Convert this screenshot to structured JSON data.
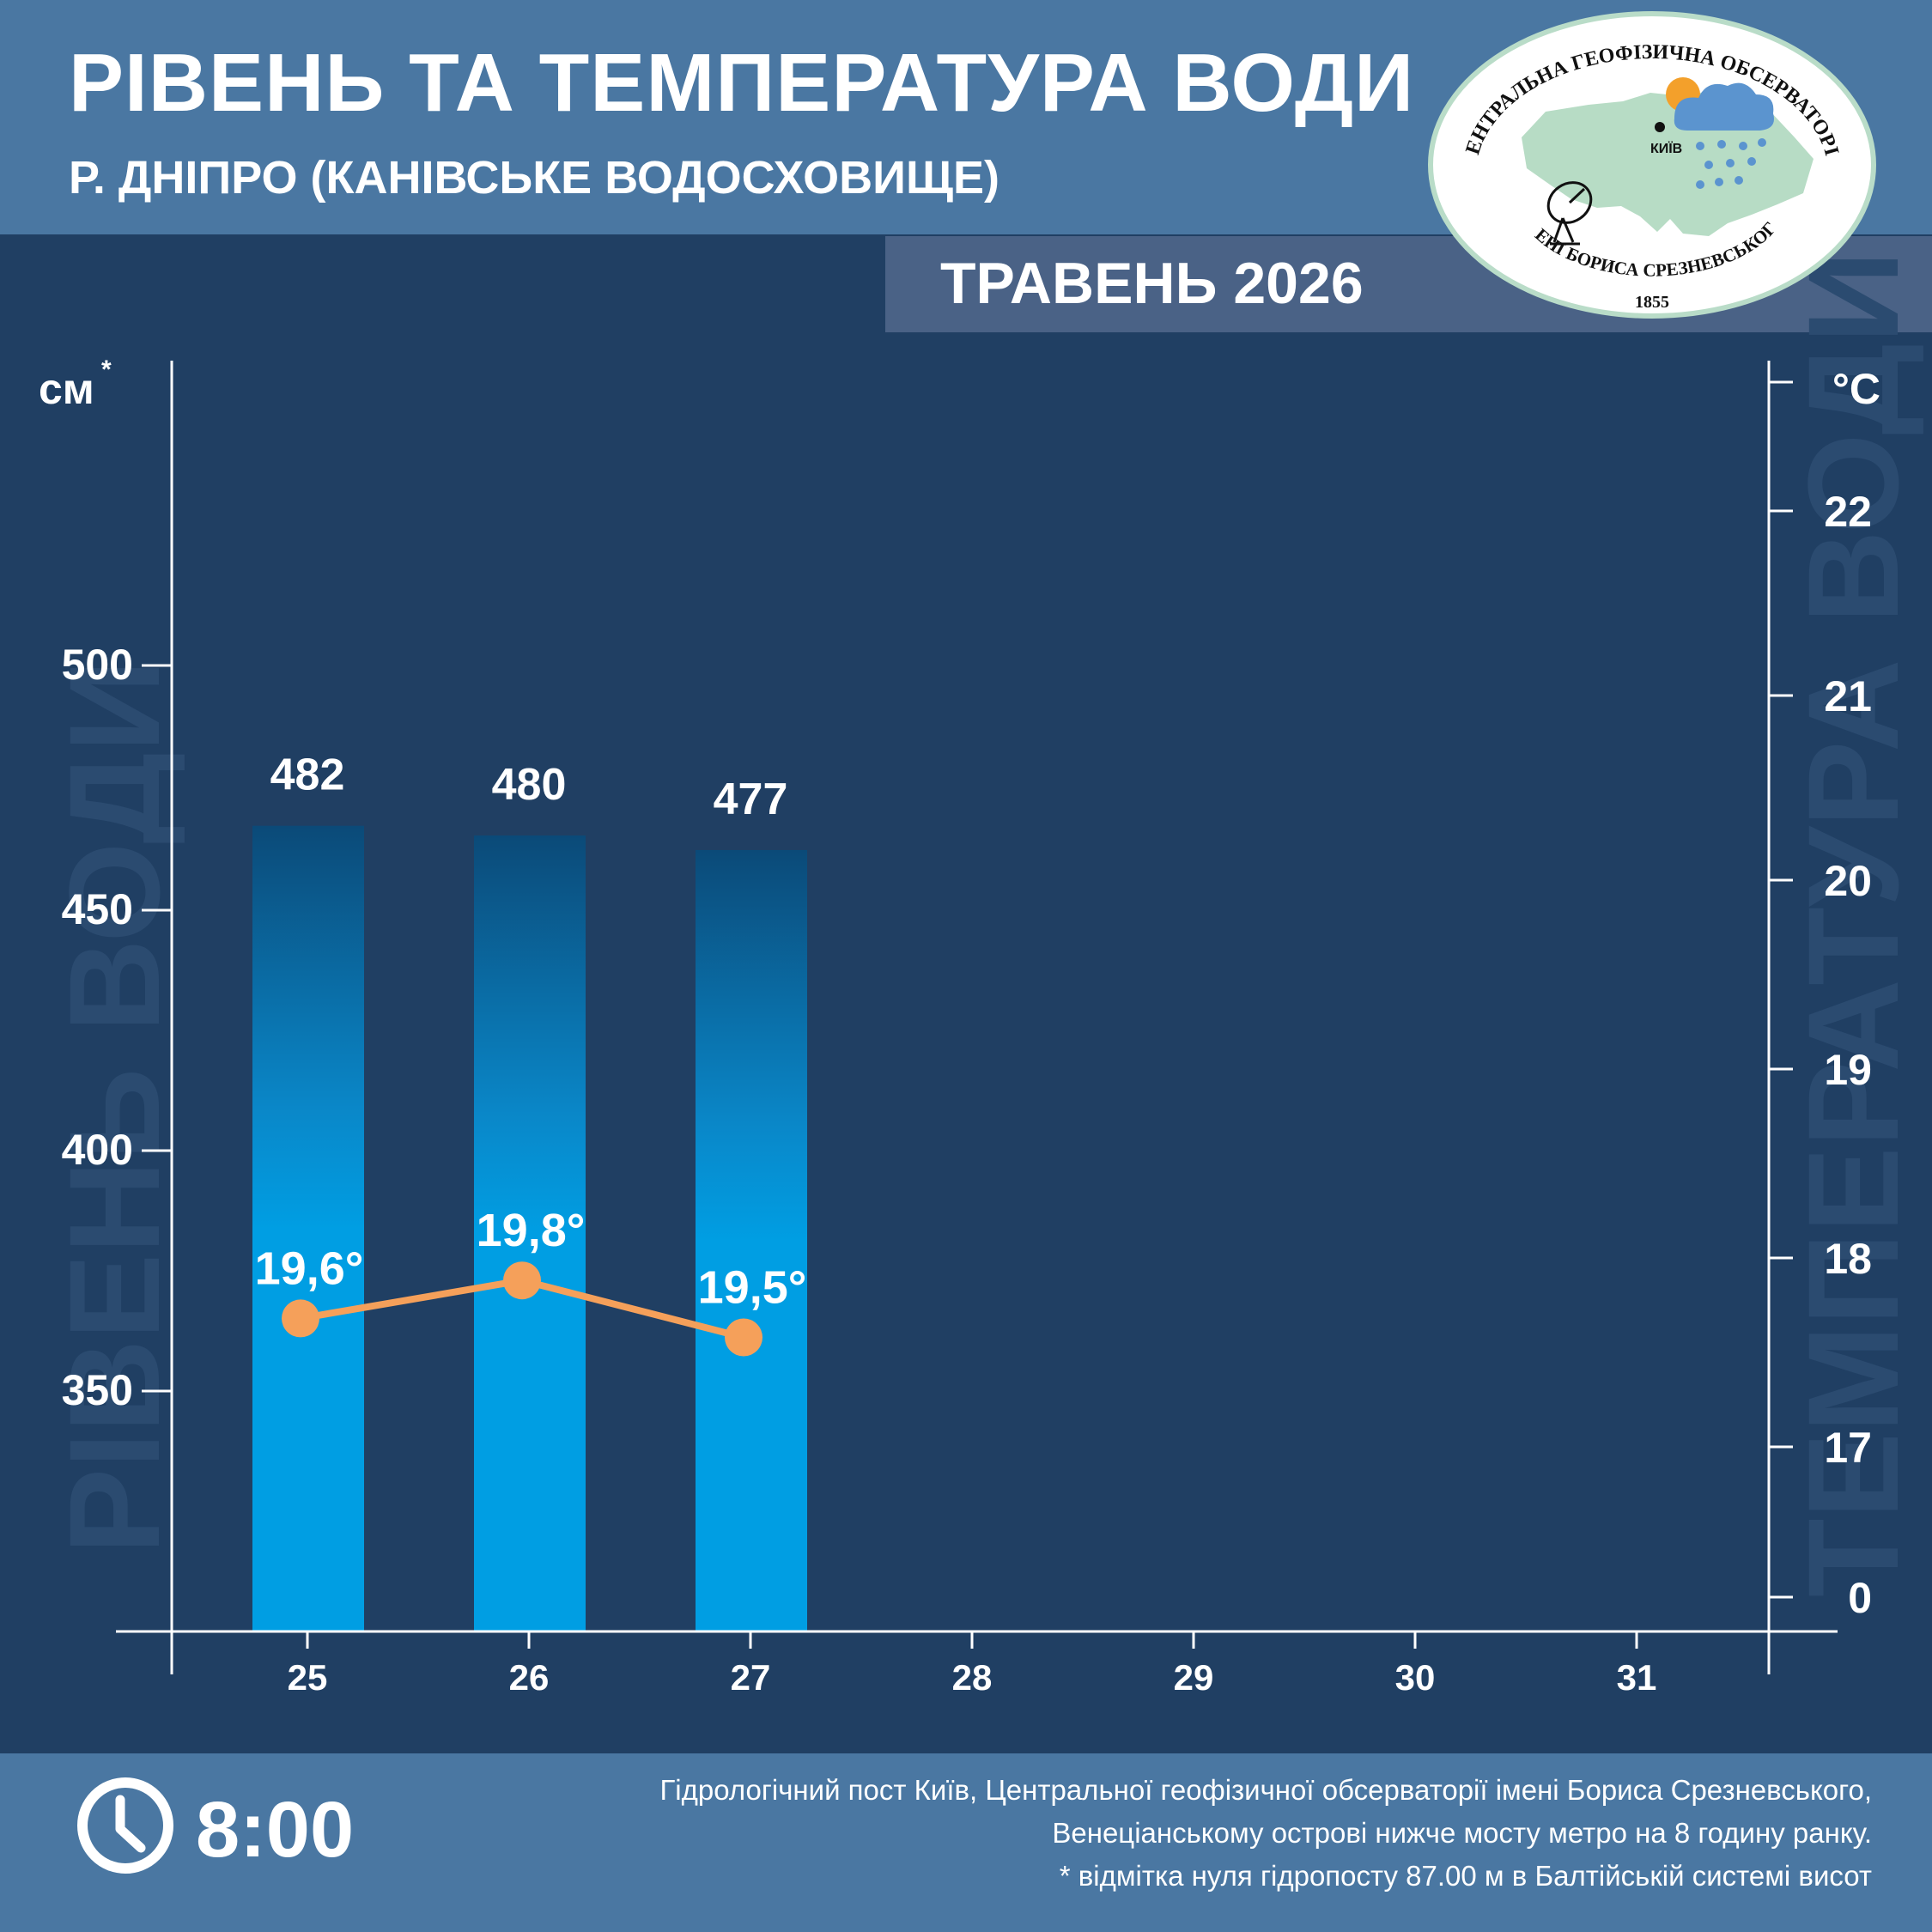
{
  "header": {
    "title": "РІВЕНЬ ТА ТЕМПЕРАТУРА ВОДИ",
    "subtitle": "Р. ДНІПРО (КАНІВСЬКЕ ВОДОСХОВИЩЕ)",
    "month": "ТРАВЕНЬ 2026"
  },
  "logo": {
    "top_text": "ЦЕНТРАЛЬНА ГЕОФІЗИЧНА ОБСЕРВАТОРІЯ",
    "bottom_text": "ІМЕНІ БОРИСА СРЕЗНЕВСЬКОГО",
    "year": "1855",
    "city": "КИЇВ"
  },
  "chart_data": {
    "type": "bar",
    "categories": [
      "25",
      "26",
      "27",
      "28",
      "29",
      "30",
      "31"
    ],
    "series": [
      {
        "values": [
          482,
          480,
          477,
          null,
          null,
          null,
          null
        ]
      },
      {
        "values": [
          19.6,
          19.8,
          19.5,
          null,
          null,
          null,
          null
        ]
      }
    ],
    "level_labels": [
      "482",
      "480",
      "477"
    ],
    "temp_labels": [
      "19,6°",
      "19,8°",
      "19,5°"
    ],
    "left_axis": {
      "unit": "см",
      "unit_mark": "*",
      "ticks": [
        500,
        450,
        400,
        350
      ],
      "watermark": "РІВЕНЬ ВОДИ"
    },
    "right_axis": {
      "unit": "°C",
      "ticks": [
        "22",
        "21",
        "20",
        "19",
        "18",
        "17",
        "0"
      ],
      "watermark": "ТЕМПЕРАТУРА ВОДИ"
    },
    "colors": {
      "bar": "#009ee3",
      "bar_top": "#0b4a78",
      "line": "#f5a05a",
      "background": "#203f63"
    }
  },
  "footer": {
    "time": "8:00",
    "note_line1": "Гідрологічний пост Київ, Центральної геофізичної обсерваторії імені Бориса Срезневського,",
    "note_line2": "Венеціанському острові нижче мосту метро  на 8 годину ранку.",
    "note_line3": "* відмітка нуля гідропосту 87.00 м в Балтійській системі висот"
  }
}
